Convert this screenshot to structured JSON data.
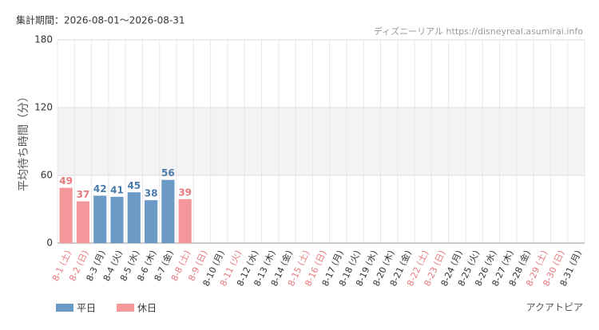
{
  "chart_data": {
    "type": "bar",
    "title": "集計期間：2026-08-01〜2026-08-31",
    "source": "ディズニーリアル https://disneyreal.asumirai.info",
    "y_label": "平均待ち時間（分）",
    "footer": "アクアトピア",
    "categories": [
      "8-1 (土)",
      "8-2 (日)",
      "8-3 (月)",
      "8-4 (火)",
      "8-5 (水)",
      "8-6 (木)",
      "8-7 (金)",
      "8-8 (土)",
      "8-9 (日)",
      "8-10 (月)",
      "8-11 (火)",
      "8-12 (水)",
      "8-13 (木)",
      "8-14 (金)",
      "8-15 (土)",
      "8-16 (日)",
      "8-17 (月)",
      "8-18 (火)",
      "8-19 (水)",
      "8-20 (木)",
      "8-21 (金)",
      "8-22 (土)",
      "8-23 (日)",
      "8-24 (月)",
      "8-25 (火)",
      "8-26 (水)",
      "8-27 (木)",
      "8-28 (金)",
      "8-29 (土)",
      "8-30 (日)",
      "8-31 (月)"
    ],
    "category_label_colors": [
      "#e8787c",
      "#e8787c",
      "#333",
      "#333",
      "#333",
      "#333",
      "#333",
      "#e8787c",
      "#e8787c",
      "#333",
      "#e8787c",
      "#333",
      "#333",
      "#333",
      "#e8787c",
      "#e8787c",
      "#333",
      "#333",
      "#333",
      "#333",
      "#333",
      "#e8787c",
      "#e8787c",
      "#333",
      "#333",
      "#333",
      "#333",
      "#333",
      "#e8787c",
      "#e8787c",
      "#333"
    ],
    "series": [
      {
        "name": "平日",
        "color": "#6b9ac7",
        "label_color": "#4a7aab",
        "values": [
          null,
          null,
          42,
          41,
          45,
          38,
          56,
          null,
          null,
          null,
          null,
          null,
          null,
          null,
          null,
          null,
          null,
          null,
          null,
          null,
          null,
          null,
          null,
          null,
          null,
          null,
          null,
          null,
          null,
          null,
          null
        ]
      },
      {
        "name": "休日",
        "color": "#f4979a",
        "label_color": "#e8787c",
        "values": [
          49,
          37,
          null,
          null,
          null,
          null,
          null,
          39,
          null,
          null,
          null,
          null,
          null,
          null,
          null,
          null,
          null,
          null,
          null,
          null,
          null,
          null,
          null,
          null,
          null,
          null,
          null,
          null,
          null,
          null,
          null
        ]
      }
    ],
    "ylim": [
      0,
      180
    ],
    "yticks": [
      0,
      60,
      120,
      180
    ],
    "shaded_band": [
      60,
      120
    ],
    "grid": true
  }
}
